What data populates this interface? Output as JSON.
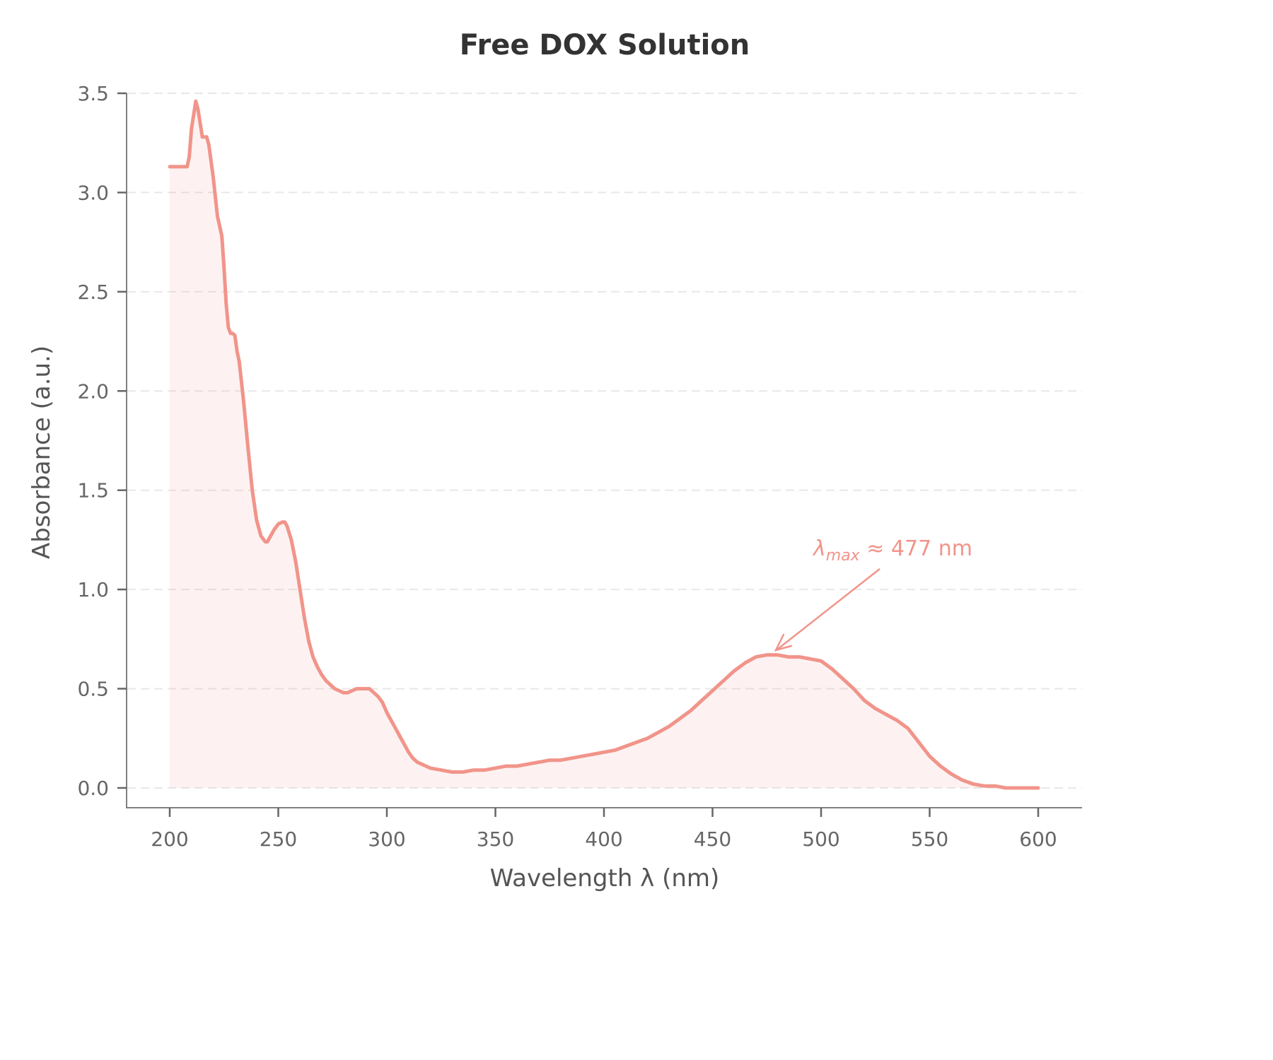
{
  "chart_data": {
    "type": "line",
    "title": "Free DOX Solution",
    "xlabel": "Wavelength λ (nm)",
    "ylabel": "Absorbance (a.u.)",
    "xlim": [
      180,
      620
    ],
    "ylim": [
      -0.1,
      3.5
    ],
    "xticks": [
      200,
      250,
      300,
      350,
      400,
      450,
      500,
      550,
      600
    ],
    "yticks": [
      0.0,
      0.5,
      1.0,
      1.5,
      2.0,
      2.5,
      3.0,
      3.5
    ],
    "xtick_labels": [
      "200",
      "250",
      "300",
      "350",
      "400",
      "450",
      "500",
      "550",
      "600"
    ],
    "ytick_labels": [
      "0.0",
      "0.5",
      "1.0",
      "1.5",
      "2.0",
      "2.5",
      "3.0",
      "3.5"
    ],
    "grid": {
      "y": true,
      "x": false,
      "style": "dashed"
    },
    "legend": null,
    "series": [
      {
        "name": "Free DOX Solution",
        "color": "#f1948a",
        "fill": true,
        "x": [
          200,
          204,
          208,
          209,
          210,
          211,
          212,
          213,
          214,
          215,
          216,
          217,
          218,
          220,
          222,
          224,
          225,
          226,
          227,
          228,
          229,
          230,
          231,
          232,
          234,
          236,
          238,
          240,
          242,
          244,
          245,
          246,
          248,
          250,
          252,
          253,
          254,
          256,
          258,
          260,
          262,
          264,
          266,
          268,
          270,
          272,
          274,
          276,
          278,
          280,
          282,
          284,
          286,
          288,
          290,
          292,
          294,
          296,
          298,
          300,
          302,
          304,
          306,
          308,
          310,
          312,
          314,
          316,
          318,
          320,
          325,
          330,
          335,
          340,
          345,
          350,
          355,
          360,
          365,
          370,
          375,
          380,
          385,
          390,
          395,
          400,
          405,
          410,
          415,
          420,
          425,
          430,
          435,
          440,
          445,
          450,
          455,
          460,
          465,
          470,
          475,
          477,
          480,
          485,
          490,
          495,
          500,
          505,
          510,
          515,
          520,
          525,
          530,
          535,
          540,
          545,
          550,
          555,
          560,
          565,
          570,
          575,
          580,
          585,
          590,
          595,
          600
        ],
        "values": [
          3.13,
          3.13,
          3.13,
          3.18,
          3.32,
          3.39,
          3.46,
          3.42,
          3.35,
          3.28,
          3.28,
          3.28,
          3.24,
          3.08,
          2.88,
          2.78,
          2.62,
          2.44,
          2.32,
          2.29,
          2.29,
          2.28,
          2.2,
          2.15,
          1.95,
          1.72,
          1.5,
          1.35,
          1.27,
          1.24,
          1.24,
          1.26,
          1.3,
          1.33,
          1.34,
          1.34,
          1.32,
          1.25,
          1.14,
          1.0,
          0.86,
          0.74,
          0.66,
          0.61,
          0.57,
          0.54,
          0.52,
          0.5,
          0.49,
          0.48,
          0.48,
          0.49,
          0.5,
          0.5,
          0.5,
          0.5,
          0.48,
          0.46,
          0.43,
          0.38,
          0.34,
          0.3,
          0.26,
          0.22,
          0.18,
          0.15,
          0.13,
          0.12,
          0.11,
          0.1,
          0.09,
          0.08,
          0.08,
          0.09,
          0.09,
          0.1,
          0.11,
          0.11,
          0.12,
          0.13,
          0.14,
          0.14,
          0.15,
          0.16,
          0.17,
          0.18,
          0.19,
          0.21,
          0.23,
          0.25,
          0.28,
          0.31,
          0.35,
          0.39,
          0.44,
          0.49,
          0.54,
          0.59,
          0.63,
          0.66,
          0.67,
          0.67,
          0.67,
          0.66,
          0.66,
          0.65,
          0.64,
          0.6,
          0.55,
          0.5,
          0.44,
          0.4,
          0.37,
          0.34,
          0.3,
          0.23,
          0.16,
          0.11,
          0.07,
          0.04,
          0.02,
          0.01,
          0.01,
          0.0,
          0.0,
          0.0,
          0.0
        ]
      }
    ],
    "annotations": [
      {
        "text_symbol": "λ",
        "text_sub": "max",
        "text_rest": "≈ 477 nm",
        "xy": [
          477,
          0.67
        ],
        "xytext": [
          497,
          1.18
        ],
        "arrow": true
      }
    ]
  },
  "labels": {
    "title": "Free DOX Solution",
    "xlabel": "Wavelength λ (nm)",
    "ylabel": "Absorbance (a.u.)",
    "annotation_symbol": "λ",
    "annotation_sub": "max",
    "annotation_rest": " ≈ 477 nm"
  }
}
